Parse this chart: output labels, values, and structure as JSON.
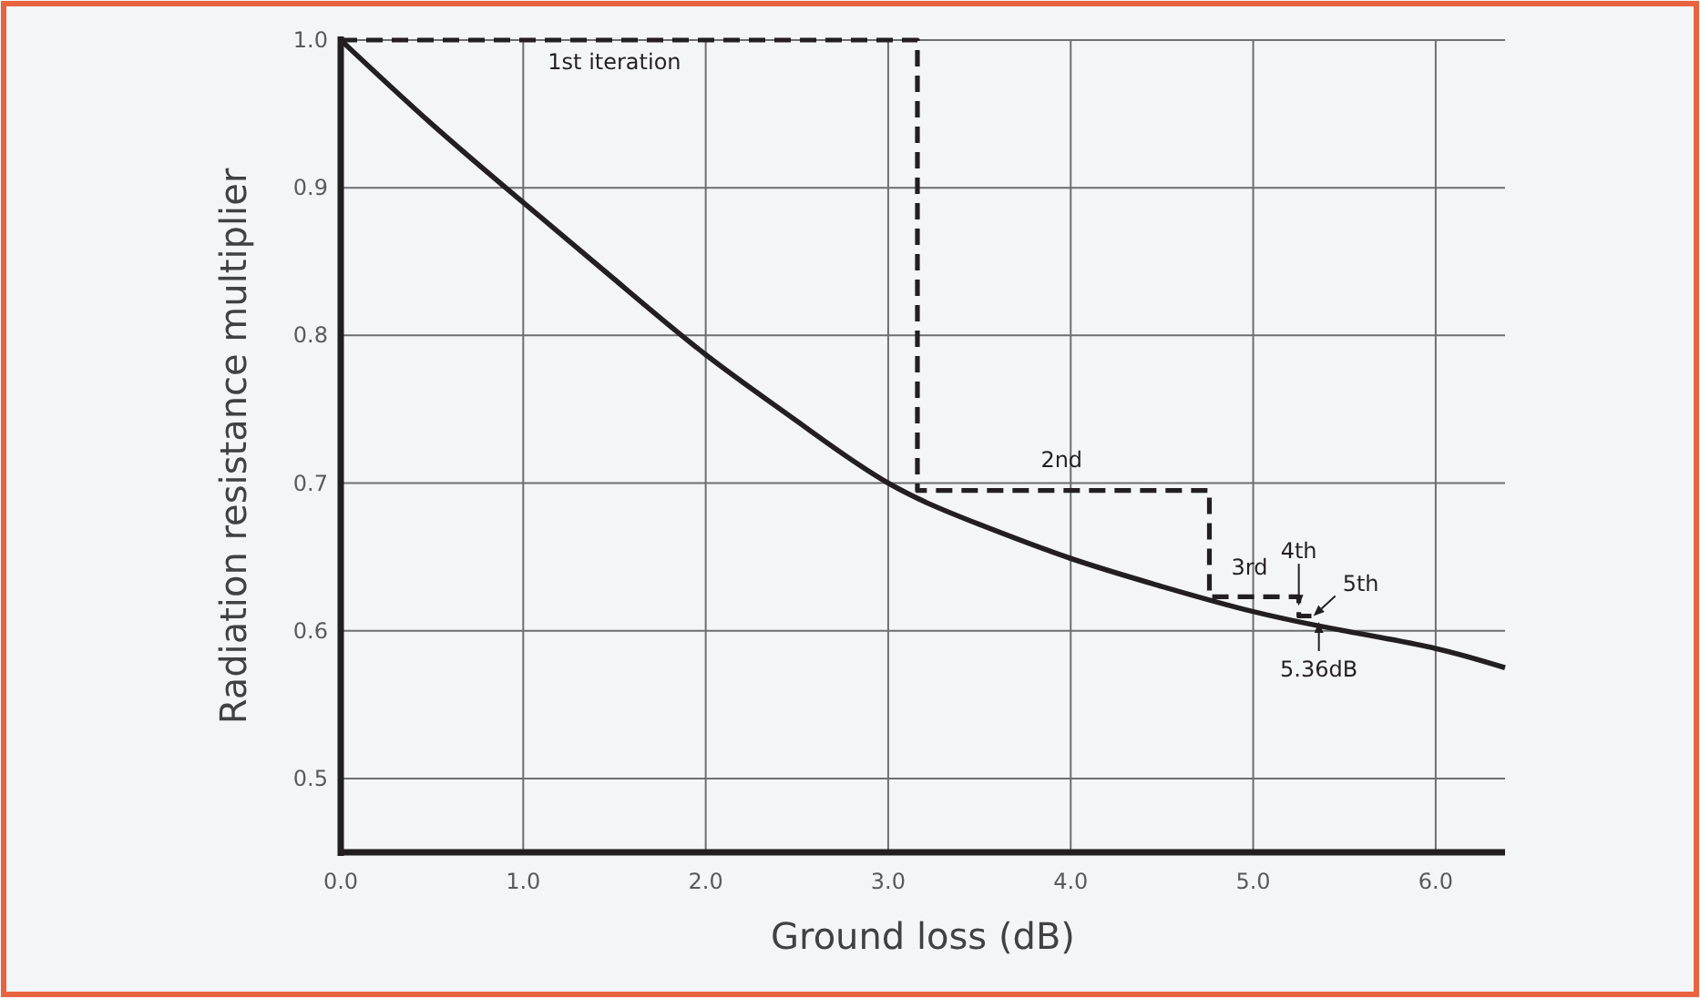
{
  "chart_data": {
    "type": "line",
    "xlabel": "Ground loss (dB)",
    "ylabel": "Radiation resistance multiplier",
    "xlim": [
      0,
      6.38
    ],
    "ylim": [
      0.45,
      1.0
    ],
    "xticks": [
      {
        "value": 0,
        "label": "0.0"
      },
      {
        "value": 1,
        "label": "1.0"
      },
      {
        "value": 2,
        "label": "2.0"
      },
      {
        "value": 3,
        "label": "3.0"
      },
      {
        "value": 4,
        "label": "4.0"
      },
      {
        "value": 5,
        "label": "5.0"
      },
      {
        "value": 6,
        "label": "6.0"
      }
    ],
    "yticks": [
      0.5,
      0.6,
      0.7,
      0.8,
      0.9,
      {
        "value": 1,
        "label": "1.0"
      }
    ],
    "grid": true,
    "series": [
      {
        "color": "#231f20",
        "line_style": "solid",
        "x": [
          0,
          0.5,
          1,
          1.5,
          2,
          2.5,
          3,
          3.5,
          4,
          4.5,
          5,
          5.5,
          6,
          6.38
        ],
        "values": [
          1.0,
          0.943,
          0.89,
          0.838,
          0.787,
          0.742,
          0.7,
          0.672,
          0.649,
          0.63,
          0.613,
          0.6,
          0.588,
          0.575
        ]
      },
      {
        "color": "#231f20",
        "line_style": "dashed",
        "x": [
          0,
          3.16,
          3.16,
          4.76,
          4.76,
          5.25,
          5.25,
          5.36
        ],
        "values": [
          1.0,
          1.0,
          0.695,
          0.695,
          0.623,
          0.623,
          0.61,
          0.61
        ]
      }
    ],
    "annotations": [
      {
        "text": "1st iteration",
        "x": 1.5,
        "y": 1.0
      },
      {
        "text": "2nd",
        "x": 3.95,
        "y": 0.695
      },
      {
        "text": "3rd",
        "x": 4.98,
        "y": 0.623
      },
      {
        "text": "4th",
        "x": 5.25,
        "y": 0.617
      },
      {
        "text": "5th",
        "x": 5.33,
        "y": 0.61
      },
      {
        "text": "5.36dB",
        "x": 5.36,
        "y": 0.606
      }
    ]
  }
}
